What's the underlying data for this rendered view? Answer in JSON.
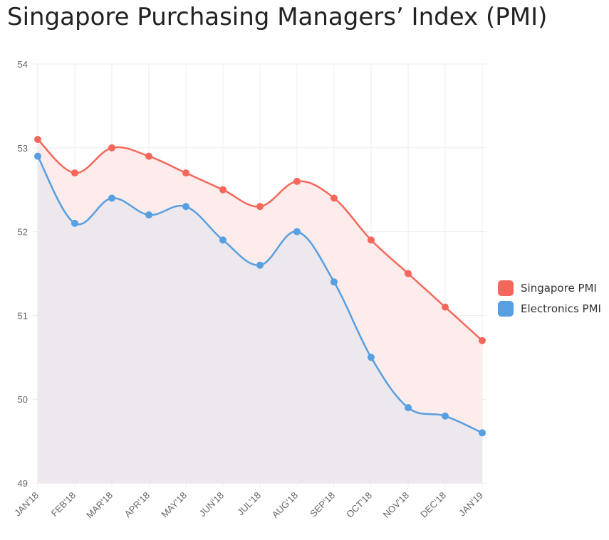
{
  "title": "Singapore Purchasing Managers’ Index (PMI)",
  "colors": {
    "singapore": "#f5675a",
    "electronics": "#569fe0",
    "singapore_fill": "#fdeceb",
    "electronics_fill": "#ede7ee",
    "grid": "#ececec"
  },
  "chart_data": {
    "type": "line",
    "title": "Singapore Purchasing Managers’ Index (PMI)",
    "categories": [
      "JAN'18",
      "FEB'18",
      "MAR'18",
      "APR'18",
      "MAY'18",
      "JUN'18",
      "JUL'18",
      "AUG'18",
      "SEP'18",
      "OCT'18",
      "NOV'18",
      "DEC'18",
      "JAN'19"
    ],
    "series": [
      {
        "name": "Singapore PMI",
        "values": [
          53.1,
          52.7,
          53.0,
          52.9,
          52.7,
          52.5,
          52.3,
          52.6,
          52.4,
          51.9,
          51.5,
          51.1,
          50.7
        ],
        "area": true,
        "smooth": true
      },
      {
        "name": "Electronics PMI",
        "values": [
          52.9,
          52.1,
          52.4,
          52.2,
          52.3,
          51.9,
          51.6,
          52.0,
          51.4,
          50.5,
          49.9,
          49.8,
          49.6
        ],
        "area": true,
        "smooth": true
      }
    ],
    "ylim": [
      49,
      54
    ],
    "yticks": [
      49,
      50,
      51,
      52,
      53,
      54
    ],
    "grid": true,
    "legend": "right"
  },
  "legend": [
    {
      "label": "Singapore PMI",
      "color": "#f5675a"
    },
    {
      "label": "Electronics PMI",
      "color": "#569fe0"
    }
  ]
}
